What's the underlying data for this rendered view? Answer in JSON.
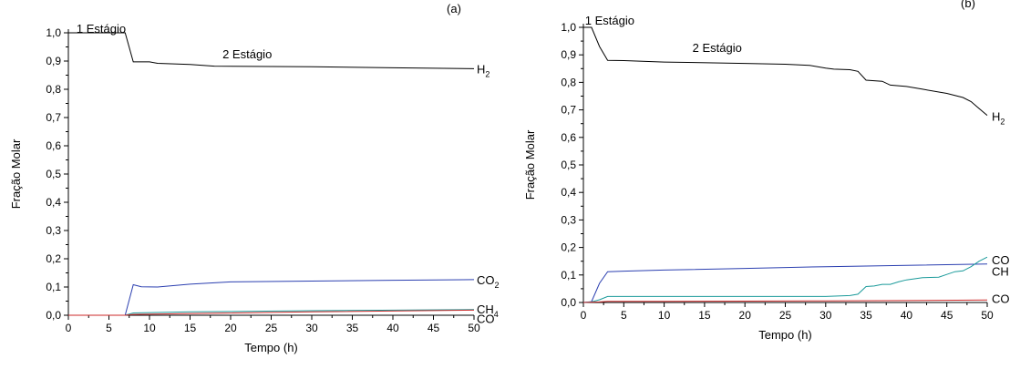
{
  "chart_data": [
    {
      "type": "line",
      "panel_label": "(a)",
      "xlabel": "Tempo (h)",
      "ylabel": "Fração Molar",
      "xlim": [
        0,
        50
      ],
      "ylim": [
        0,
        1.0
      ],
      "xticks": [
        "0",
        "5",
        "10",
        "15",
        "20",
        "25",
        "30",
        "35",
        "40",
        "45",
        "50"
      ],
      "yticks": [
        "0,0",
        "0,1",
        "0,2",
        "0,3",
        "0,4",
        "0,5",
        "0,6",
        "0,7",
        "0,8",
        "0,9",
        "1,0"
      ],
      "annotations": [
        {
          "text": "1 Estágio",
          "x": 1,
          "y": 1.0
        },
        {
          "text": "2 Estágio",
          "x": 19,
          "y": 0.91
        }
      ],
      "series": [
        {
          "name": "H",
          "sub": "2",
          "color": "#000000",
          "x": [
            0,
            7,
            8,
            10,
            11,
            15,
            18,
            30,
            40,
            50
          ],
          "y": [
            1.0,
            1.0,
            0.897,
            0.897,
            0.892,
            0.888,
            0.882,
            0.88,
            0.876,
            0.873
          ]
        },
        {
          "name": "CO",
          "sub": "2",
          "color": "#2b3fb0",
          "x": [
            0,
            7,
            8,
            9,
            11,
            15,
            20,
            30,
            40,
            50
          ],
          "y": [
            0.0,
            0.0,
            0.108,
            0.101,
            0.1,
            0.11,
            0.118,
            0.121,
            0.124,
            0.126
          ]
        },
        {
          "name": "CH",
          "sub": "4",
          "color": "#1a9a9a",
          "x": [
            0,
            7,
            8,
            15,
            30,
            50
          ],
          "y": [
            0.0,
            0.0,
            0.008,
            0.012,
            0.016,
            0.02
          ]
        },
        {
          "name": "CO",
          "sub": "",
          "color": "#cc2a2a",
          "x": [
            0,
            7,
            8,
            15,
            30,
            50
          ],
          "y": [
            0.0,
            0.0,
            0.003,
            0.006,
            0.012,
            0.018
          ]
        }
      ]
    },
    {
      "type": "line",
      "panel_label": "(b)",
      "xlabel": "Tempo (h)",
      "ylabel": "Fração Molar",
      "xlim": [
        0,
        50
      ],
      "ylim": [
        0,
        1.0
      ],
      "xticks": [
        "0",
        "5",
        "10",
        "15",
        "20",
        "25",
        "30",
        "35",
        "40",
        "45",
        "50"
      ],
      "yticks": [
        "0,0",
        "0,1",
        "0,2",
        "0,3",
        "0,4",
        "0,5",
        "0,6",
        "0,7",
        "0,8",
        "0,9",
        "1,0"
      ],
      "annotations": [
        {
          "text": "1 Estágio",
          "x": 0.2,
          "y": 1.01
        },
        {
          "text": "2 Estágio",
          "x": 13.5,
          "y": 0.91
        }
      ],
      "series": [
        {
          "name": "H",
          "sub": "2",
          "color": "#000000",
          "x": [
            0,
            1,
            2,
            3,
            5,
            10,
            20,
            25,
            28,
            30,
            31,
            33,
            34,
            35,
            37,
            38,
            40,
            42,
            45,
            47,
            48,
            49,
            50
          ],
          "y": [
            1.0,
            1.0,
            0.93,
            0.88,
            0.879,
            0.874,
            0.869,
            0.866,
            0.862,
            0.852,
            0.848,
            0.846,
            0.84,
            0.808,
            0.804,
            0.79,
            0.785,
            0.775,
            0.76,
            0.745,
            0.73,
            0.705,
            0.68
          ]
        },
        {
          "name": "CH",
          "sub": "",
          "color": "#2b3fb0",
          "x": [
            0,
            1,
            2,
            3,
            5,
            10,
            20,
            30,
            40,
            50
          ],
          "y": [
            0.0,
            0.003,
            0.07,
            0.112,
            0.114,
            0.118,
            0.124,
            0.13,
            0.135,
            0.14
          ]
        },
        {
          "name": "CO",
          "sub": "",
          "color": "#1a9a9a",
          "x": [
            0,
            1,
            2,
            3,
            5,
            10,
            20,
            30,
            33,
            34,
            35,
            36,
            37,
            38,
            39,
            40,
            41,
            42,
            44,
            45,
            46,
            47,
            48,
            49,
            50
          ],
          "y": [
            0.0,
            0.002,
            0.01,
            0.022,
            0.022,
            0.022,
            0.022,
            0.022,
            0.025,
            0.03,
            0.058,
            0.06,
            0.066,
            0.066,
            0.075,
            0.082,
            0.086,
            0.09,
            0.092,
            0.102,
            0.112,
            0.115,
            0.13,
            0.15,
            0.165
          ]
        },
        {
          "name": "CO",
          "sub": "",
          "color": "#cc2a2a",
          "x": [
            0,
            2,
            3,
            10,
            20,
            30,
            40,
            50
          ],
          "y": [
            0.0,
            0.002,
            0.004,
            0.004,
            0.005,
            0.006,
            0.007,
            0.009
          ]
        }
      ]
    }
  ]
}
